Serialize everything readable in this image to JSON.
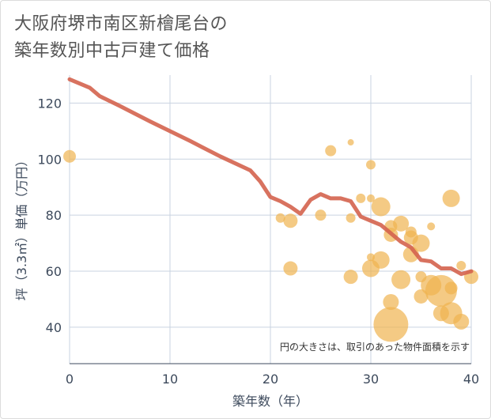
{
  "title_lines": [
    "大阪府堺市南区新檜尾台の",
    "築年数別中古戸建て価格"
  ],
  "chart_data": {
    "type": "scatter",
    "title": "大阪府堺市南区新檜尾台の築年数別中古戸建て価格",
    "xlabel": "築年数（年）",
    "ylabel": "坪（3.3㎡）単価（万円）",
    "xlim": [
      0,
      40
    ],
    "ylim": [
      27,
      130
    ],
    "x_ticks": [
      0,
      10,
      20,
      30,
      40
    ],
    "y_ticks": [
      40,
      60,
      80,
      100,
      120
    ],
    "grid": true,
    "annotation": "円の大きさは、取引のあった物件面積を示す",
    "colors": {
      "bubble": "#f0b450",
      "line": "#d4634e"
    },
    "bubbles": [
      {
        "x": 0,
        "y": 101,
        "s": 8
      },
      {
        "x": 21,
        "y": 79,
        "s": 6
      },
      {
        "x": 22,
        "y": 78,
        "s": 9
      },
      {
        "x": 22,
        "y": 61,
        "s": 9
      },
      {
        "x": 25,
        "y": 80,
        "s": 7
      },
      {
        "x": 26,
        "y": 103,
        "s": 7
      },
      {
        "x": 28,
        "y": 106,
        "s": 4
      },
      {
        "x": 28,
        "y": 79,
        "s": 6
      },
      {
        "x": 28,
        "y": 58,
        "s": 9
      },
      {
        "x": 29,
        "y": 86,
        "s": 6
      },
      {
        "x": 30,
        "y": 98,
        "s": 6
      },
      {
        "x": 30,
        "y": 86,
        "s": 5
      },
      {
        "x": 30,
        "y": 65,
        "s": 5
      },
      {
        "x": 30,
        "y": 61,
        "s": 11
      },
      {
        "x": 31,
        "y": 83,
        "s": 12
      },
      {
        "x": 31,
        "y": 64,
        "s": 11
      },
      {
        "x": 32,
        "y": 76,
        "s": 8
      },
      {
        "x": 32,
        "y": 73,
        "s": 9
      },
      {
        "x": 32,
        "y": 49,
        "s": 10
      },
      {
        "x": 32,
        "y": 41,
        "s": 22
      },
      {
        "x": 33,
        "y": 77,
        "s": 10
      },
      {
        "x": 33,
        "y": 57,
        "s": 12
      },
      {
        "x": 34,
        "y": 74,
        "s": 7
      },
      {
        "x": 34,
        "y": 72,
        "s": 9
      },
      {
        "x": 34,
        "y": 66,
        "s": 10
      },
      {
        "x": 35,
        "y": 70,
        "s": 11
      },
      {
        "x": 35,
        "y": 58,
        "s": 7
      },
      {
        "x": 35,
        "y": 51,
        "s": 9
      },
      {
        "x": 36,
        "y": 76,
        "s": 5
      },
      {
        "x": 36,
        "y": 55,
        "s": 13
      },
      {
        "x": 37,
        "y": 53,
        "s": 20
      },
      {
        "x": 37,
        "y": 45,
        "s": 10
      },
      {
        "x": 38,
        "y": 86,
        "s": 11
      },
      {
        "x": 38,
        "y": 54,
        "s": 8
      },
      {
        "x": 38,
        "y": 45,
        "s": 14
      },
      {
        "x": 39,
        "y": 62,
        "s": 6
      },
      {
        "x": 39,
        "y": 42,
        "s": 10
      },
      {
        "x": 40,
        "y": 58,
        "s": 9
      }
    ],
    "trend": {
      "x": [
        0,
        2,
        3,
        5,
        8,
        10,
        12,
        15,
        18,
        19,
        20,
        21,
        22,
        23,
        24,
        25,
        26,
        27,
        28,
        29,
        30,
        31,
        32,
        33,
        34,
        35,
        36,
        37,
        38,
        39,
        40
      ],
      "y": [
        128.5,
        125.5,
        122.5,
        119,
        113.5,
        110,
        106.5,
        101,
        96,
        92,
        86.5,
        85,
        83,
        80.5,
        85.5,
        87.5,
        86,
        86,
        85,
        79.5,
        78,
        76.5,
        73.5,
        70.5,
        68.5,
        64,
        63.5,
        61,
        61,
        59,
        60
      ]
    }
  }
}
